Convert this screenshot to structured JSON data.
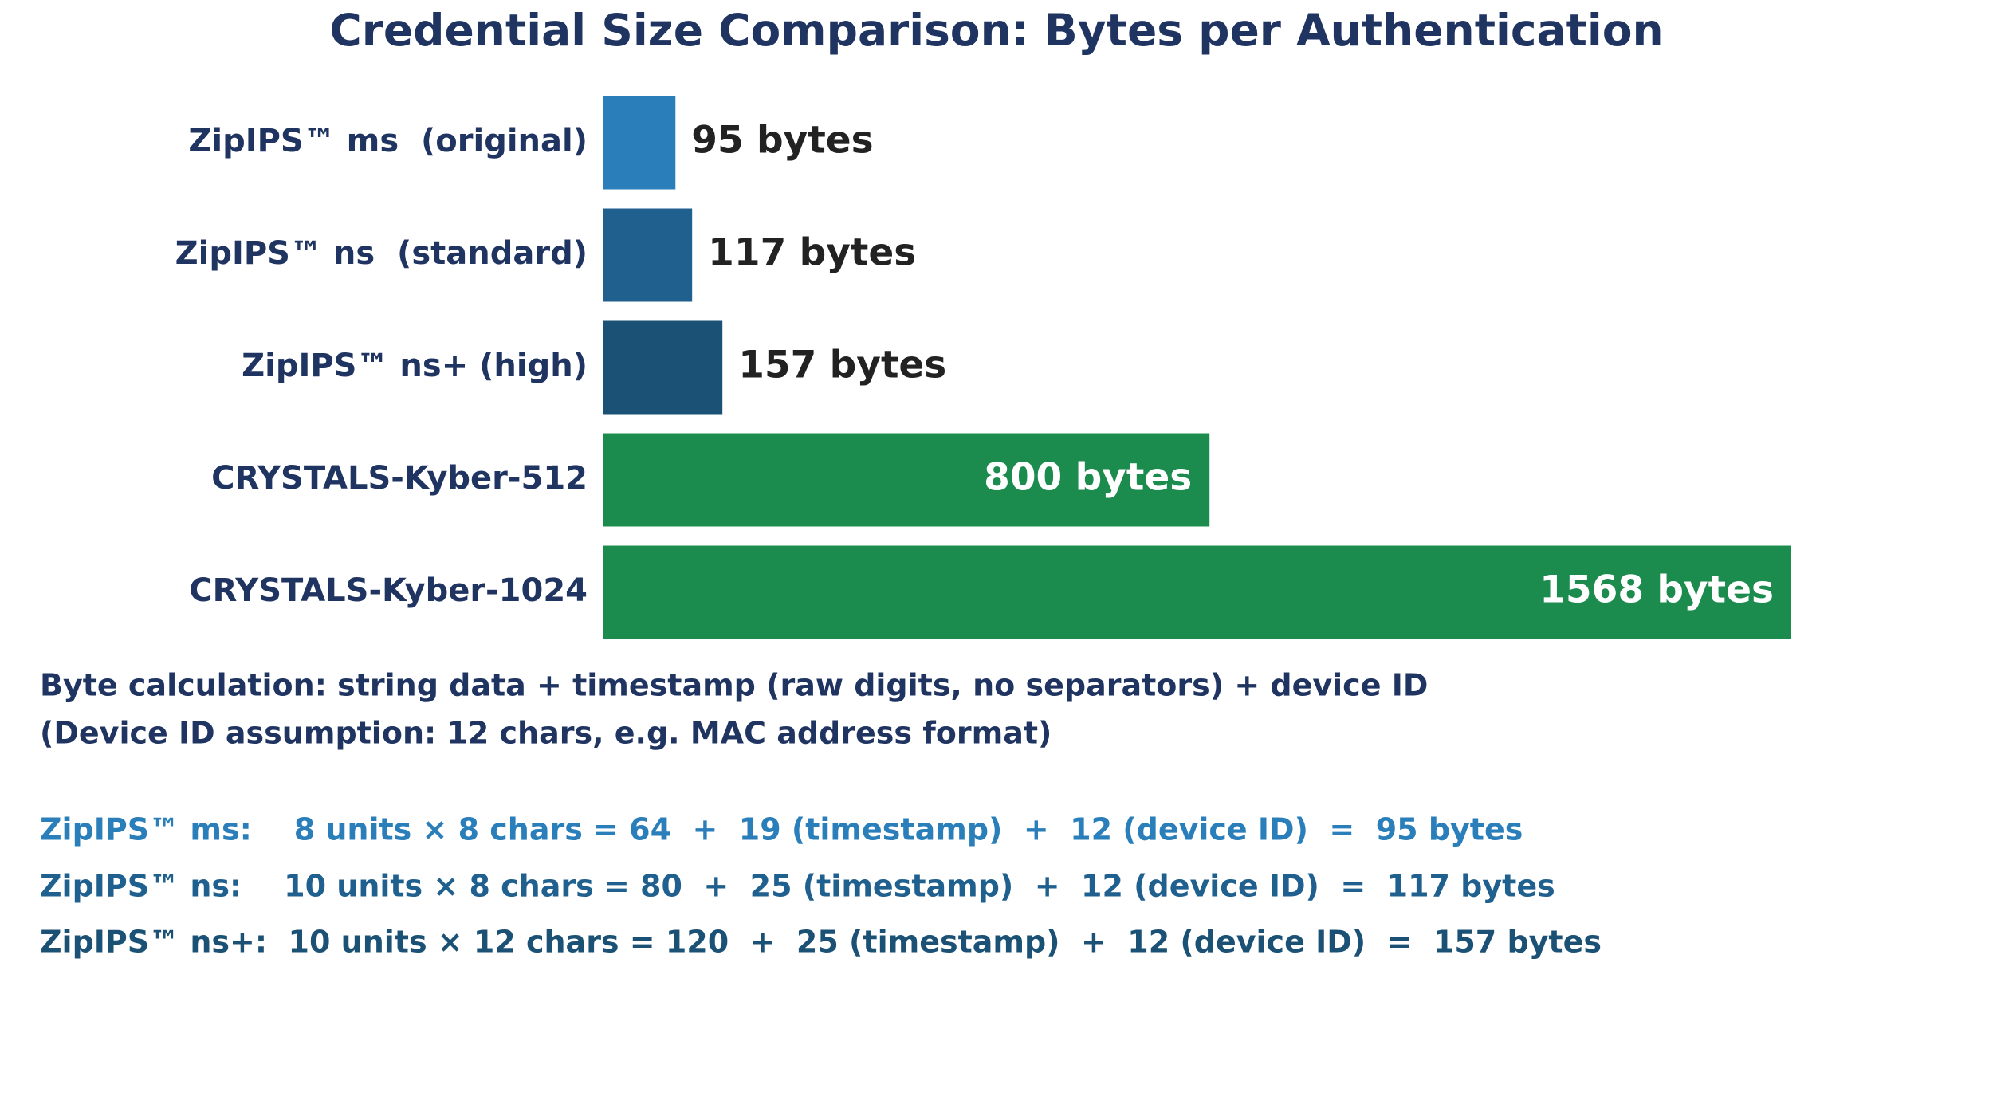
{
  "chart_data": {
    "type": "bar",
    "orientation": "horizontal",
    "title": "Credential Size Comparison: Bytes per Authentication",
    "categories": [
      "ZipIPS™ ms  (original)",
      "ZipIPS™ ns  (standard)",
      "ZipIPS™ ns+ (high)",
      "CRYSTALS-Kyber-512",
      "CRYSTALS-Kyber-1024"
    ],
    "values": [
      95,
      117,
      157,
      800,
      1568
    ],
    "value_labels": [
      "95 bytes",
      "117 bytes",
      "157 bytes",
      "800 bytes",
      "1568 bytes"
    ],
    "bar_colors": [
      "#2a7fba",
      "#20608f",
      "#1a5175",
      "#1c8c4e",
      "#1c8c4e"
    ],
    "xlabel": "",
    "ylabel": "",
    "xlim": [
      0,
      1568
    ],
    "grid": false,
    "legend": "none"
  },
  "colors": {
    "title": "#1f3461",
    "category_label": "#1f3461",
    "value_label_outside": "#222222",
    "value_label_inside": "#ffffff",
    "note": "#1f3461"
  },
  "notes": [
    "Byte calculation: string data + timestamp (raw digits, no separators) + device ID",
    "(Device ID assumption: 12 chars, e.g. MAC address format)"
  ],
  "calculations": [
    {
      "text": "ZipIPS™ ms:    8 units × 8 chars = 64  +  19 (timestamp)  +  12 (device ID)  =  95 bytes",
      "color": "#2a7fba"
    },
    {
      "text": "ZipIPS™ ns:    10 units × 8 chars = 80  +  25 (timestamp)  +  12 (device ID)  =  117 bytes",
      "color": "#20608f"
    },
    {
      "text": "ZipIPS™ ns+:  10 units × 12 chars = 120  +  25 (timestamp)  +  12 (device ID)  =  157 bytes",
      "color": "#1a5175"
    }
  ]
}
